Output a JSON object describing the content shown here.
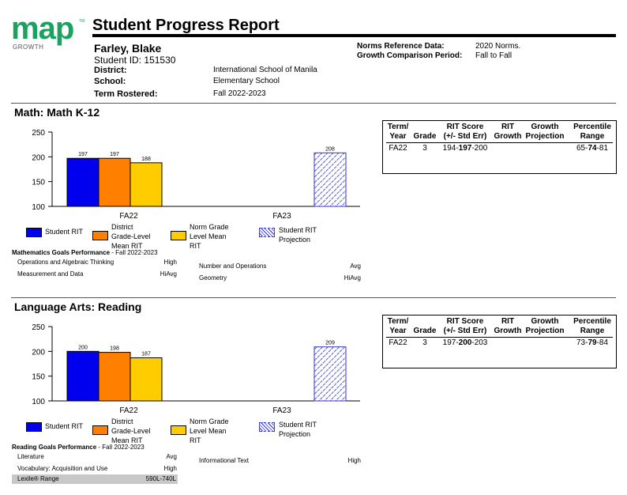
{
  "logo": {
    "word": "map",
    "tm": "TM",
    "sub": "GROWTH"
  },
  "report_title": "Student Progress Report",
  "student": {
    "name": "Farley, Blake",
    "id_label": "Student ID:",
    "id": "151530",
    "district_label": "District:",
    "district": "International School of Manila",
    "school_label": "School:",
    "school": "Elementary School",
    "term_label": "Term Rostered:",
    "term": "Fall 2022-2023"
  },
  "norms": {
    "ref_label": "Norms Reference Data:",
    "ref_value": "2020 Norms.",
    "period_label": "Growth Comparison Period:",
    "period_value": "Fall to Fall"
  },
  "table_headers": {
    "term_year": [
      "Term/",
      "Year"
    ],
    "grade": [
      "Grade"
    ],
    "rit_score": [
      "RIT Score",
      "(+/- Std Err)"
    ],
    "rit_growth": [
      "RIT",
      "Growth"
    ],
    "growth_projection": [
      "Growth",
      "Projection"
    ],
    "percentile_range": [
      "Percentile",
      "Range"
    ]
  },
  "legend": {
    "student_rit": "Student RIT",
    "district_mean": [
      "District",
      "Grade-Level",
      "Mean RIT"
    ],
    "norm_mean": [
      "Norm Grade",
      "Level Mean",
      "RIT"
    ],
    "projection": [
      "Student RIT",
      "Projection"
    ]
  },
  "colors": {
    "student": "#0000ee",
    "district": "#ff8000",
    "norm": "#ffcc00",
    "projection": "#3333cc"
  },
  "sections": [
    {
      "title": "Math: Math K-12",
      "row": {
        "term": "FA22",
        "grade": "3",
        "rit_low": "194-",
        "rit_mid": "197",
        "rit_high": "-200",
        "growth": "",
        "projection": "",
        "pct_low": "65-",
        "pct_mid": "74",
        "pct_high": "-81"
      },
      "chart_data": {
        "type": "bar",
        "categories": [
          "FA22",
          "FA23"
        ],
        "ylim": [
          100,
          250
        ],
        "yticks": [
          100,
          150,
          200,
          250
        ],
        "series": [
          {
            "name": "Student RIT",
            "values": [
              197,
              null
            ]
          },
          {
            "name": "District Grade-Level Mean RIT",
            "values": [
              197,
              null
            ]
          },
          {
            "name": "Norm Grade Level Mean RIT",
            "values": [
              188,
              null
            ]
          },
          {
            "name": "Student RIT Projection",
            "values": [
              null,
              208
            ]
          }
        ],
        "labels": [
          "197",
          "197",
          "188",
          "208"
        ]
      },
      "goals": {
        "title_bold": "Mathematics Goals Performance",
        "title_rest": " - Fall 2022-2023",
        "left": [
          {
            "name": "Operations and Algebraic Thinking",
            "value": "High"
          },
          {
            "name": "Measurement and Data",
            "value": "HiAvg"
          }
        ],
        "right": [
          {
            "name": "Number and Operations",
            "value": "Avg"
          },
          {
            "name": "Geometry",
            "value": "HiAvg"
          }
        ]
      }
    },
    {
      "title": "Language Arts: Reading",
      "row": {
        "term": "FA22",
        "grade": "3",
        "rit_low": "197-",
        "rit_mid": "200",
        "rit_high": "-203",
        "growth": "",
        "projection": "",
        "pct_low": "73-",
        "pct_mid": "79",
        "pct_high": "-84"
      },
      "chart_data": {
        "type": "bar",
        "categories": [
          "FA22",
          "FA23"
        ],
        "ylim": [
          100,
          250
        ],
        "yticks": [
          100,
          150,
          200,
          250
        ],
        "series": [
          {
            "name": "Student RIT",
            "values": [
              200,
              null
            ]
          },
          {
            "name": "District Grade-Level Mean RIT",
            "values": [
              198,
              null
            ]
          },
          {
            "name": "Norm Grade Level Mean RIT",
            "values": [
              187,
              null
            ]
          },
          {
            "name": "Student RIT Projection",
            "values": [
              null,
              209
            ]
          }
        ],
        "labels": [
          "200",
          "198",
          "187",
          "209"
        ]
      },
      "goals": {
        "title_bold": "Reading Goals Performance",
        "title_rest": " - Fall 2022-2023",
        "left": [
          {
            "name": "Literature",
            "value": "Avg"
          },
          {
            "name": "Vocabulary: Acquisition and Use",
            "value": "High"
          }
        ],
        "right": [
          {
            "name": "Informational Text",
            "value": "High"
          }
        ],
        "lexile": {
          "label": "Lexile® Range",
          "value": "590L-740L"
        }
      }
    }
  ]
}
